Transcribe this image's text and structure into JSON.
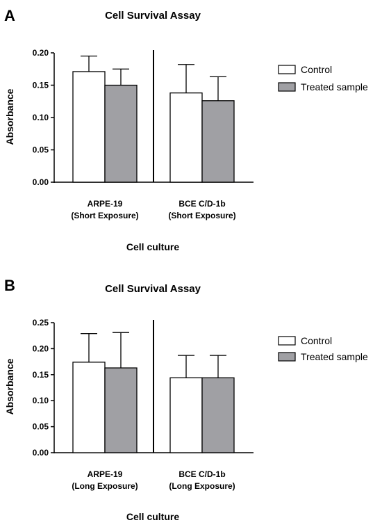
{
  "chart_data": [
    {
      "panel": "A",
      "type": "bar",
      "title": "Cell Survival Assay",
      "xlabel": "Cell culture",
      "ylabel": "Absorbance",
      "ylim": [
        0,
        0.2
      ],
      "yticks": [
        "0.00",
        "0.05",
        "0.10",
        "0.15",
        "0.20"
      ],
      "categories": [
        [
          "ARPE-19",
          "(Short Exposure)"
        ],
        [
          "BCE C/D-1b",
          "(Short Exposure)"
        ]
      ],
      "series": [
        {
          "name": "Control",
          "color": "#ffffff",
          "values": [
            0.171,
            0.138
          ],
          "errors": [
            0.024,
            0.044
          ]
        },
        {
          "name": "Treated sample",
          "color": "#a0a0a4",
          "values": [
            0.15,
            0.126
          ],
          "errors": [
            0.025,
            0.037
          ]
        }
      ],
      "legend": "right",
      "grid": false
    },
    {
      "panel": "B",
      "type": "bar",
      "title": "Cell Survival Assay",
      "xlabel": "Cell culture",
      "ylabel": "Absorbance",
      "ylim": [
        0,
        0.25
      ],
      "yticks": [
        "0.00",
        "0.05",
        "0.10",
        "0.15",
        "0.20",
        "0.25"
      ],
      "categories": [
        [
          "ARPE-19",
          "(Long Exposure)"
        ],
        [
          "BCE C/D-1b",
          "(Long Exposure)"
        ]
      ],
      "series": [
        {
          "name": "Control",
          "color": "#ffffff",
          "values": [
            0.174,
            0.144
          ],
          "errors": [
            0.055,
            0.043
          ]
        },
        {
          "name": "Treated sample",
          "color": "#a0a0a4",
          "values": [
            0.163,
            0.144
          ],
          "errors": [
            0.068,
            0.043
          ]
        }
      ],
      "legend": "right",
      "grid": false
    }
  ]
}
